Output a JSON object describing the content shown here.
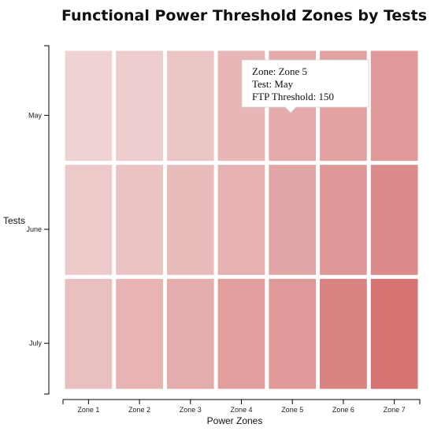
{
  "chart_data": {
    "type": "heatmap",
    "title": "Functional Power Threshold Zones by Tests",
    "xlabel": "Power Zones",
    "ylabel": "Tests",
    "x_categories": [
      "Zone 1",
      "Zone 2",
      "Zone 3",
      "Zone 4",
      "Zone 5",
      "Zone 6",
      "Zone 7"
    ],
    "y_categories": [
      "May",
      "June",
      "July"
    ],
    "color_scale": {
      "low": "#efd3d3",
      "high": "#d67474"
    },
    "rows": [
      {
        "test": "May",
        "colors": [
          "#efd3d3",
          "#edcdcd",
          "#ebc5c5",
          "#e7b6b6",
          "#e5aaaa",
          "#e2a2a2",
          "#e09a9a"
        ]
      },
      {
        "test": "June",
        "colors": [
          "#edcaca",
          "#ebc3c3",
          "#e9bcbc",
          "#e6b1b1",
          "#e3a6a6",
          "#de9898",
          "#db8b8b"
        ]
      },
      {
        "test": "July",
        "colors": [
          "#eabfbf",
          "#e7b3b3",
          "#e5acac",
          "#e29e9e",
          "#e09999",
          "#d88282",
          "#d67474"
        ]
      }
    ],
    "tooltip": {
      "zone_text": "Zone: Zone 5",
      "test_text": "Test: May",
      "value_text": "FTP Threshold: 150",
      "zone": "Zone 5",
      "test": "May",
      "value": 150
    }
  }
}
